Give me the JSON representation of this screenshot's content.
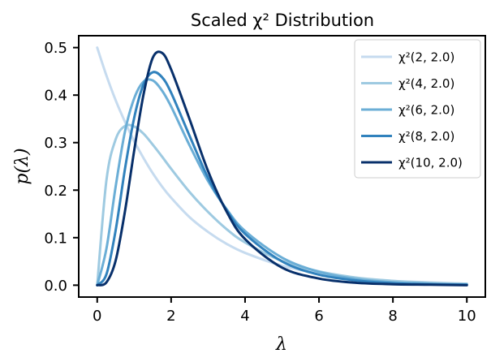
{
  "chart_data": {
    "type": "line",
    "title": "Scaled χ² Distribution",
    "xlabel": "λ",
    "ylabel": "p(λ)",
    "xlim": [
      -0.5,
      10.5
    ],
    "ylim": [
      -0.025,
      0.525
    ],
    "xticks": [
      0,
      2,
      4,
      6,
      8,
      10
    ],
    "yticks": [
      0.0,
      0.1,
      0.2,
      0.3,
      0.4,
      0.5
    ],
    "xtick_labels": [
      "0",
      "2",
      "4",
      "6",
      "8",
      "10"
    ],
    "ytick_labels": [
      "0.0",
      "0.1",
      "0.2",
      "0.3",
      "0.4",
      "0.5"
    ],
    "grid": false,
    "legend_position": "top-right",
    "x": [
      0,
      0.25,
      0.5,
      0.75,
      1.0,
      1.25,
      1.5,
      1.75,
      2.0,
      2.5,
      3.0,
      3.5,
      4.0,
      5.0,
      6.0,
      7.0,
      8.0,
      9.0,
      10.0
    ],
    "series": [
      {
        "name": "χ²(2, 2.0)",
        "color": "#c6dbef",
        "values": [
          0.5,
          0.441,
          0.389,
          0.344,
          0.303,
          0.268,
          0.236,
          0.208,
          0.184,
          0.143,
          0.112,
          0.087,
          0.068,
          0.041,
          0.025,
          0.015,
          0.009,
          0.006,
          0.003
        ]
      },
      {
        "name": "χ²(4, 2.0)",
        "color": "#9ecae1",
        "values": [
          0.0,
          0.221,
          0.307,
          0.335,
          0.334,
          0.319,
          0.296,
          0.271,
          0.245,
          0.196,
          0.154,
          0.118,
          0.09,
          0.051,
          0.029,
          0.016,
          0.009,
          0.005,
          0.003
        ]
      },
      {
        "name": "χ²(6, 2.0)",
        "color": "#6baed6",
        "values": [
          0.0,
          0.077,
          0.208,
          0.323,
          0.393,
          0.428,
          0.431,
          0.41,
          0.376,
          0.294,
          0.219,
          0.16,
          0.114,
          0.058,
          0.028,
          0.013,
          0.006,
          0.003,
          0.001
        ]
      },
      {
        "name": "χ²(8, 2.0)",
        "color": "#3182bd",
        "values": [
          0.0,
          0.023,
          0.116,
          0.244,
          0.352,
          0.422,
          0.448,
          0.438,
          0.405,
          0.314,
          0.226,
          0.158,
          0.108,
          0.05,
          0.022,
          0.01,
          0.004,
          0.002,
          0.001
        ]
      },
      {
        "name": "χ²(10, 2.0)",
        "color": "#08306b",
        "values": [
          0.0,
          0.006,
          0.052,
          0.155,
          0.283,
          0.4,
          0.478,
          0.489,
          0.454,
          0.349,
          0.24,
          0.155,
          0.097,
          0.037,
          0.014,
          0.005,
          0.002,
          0.001,
          0.0
        ]
      }
    ]
  }
}
